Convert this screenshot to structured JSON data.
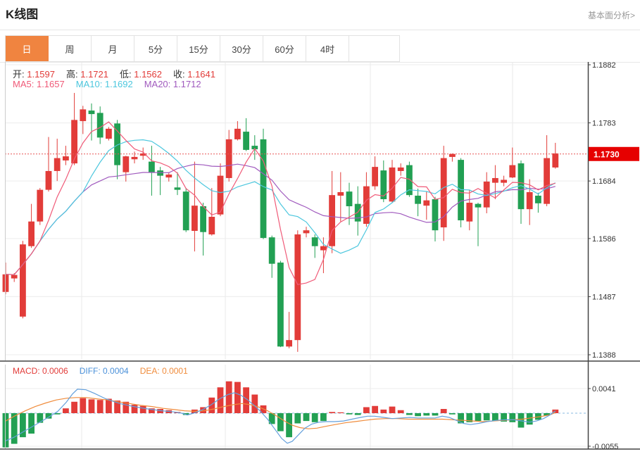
{
  "header": {
    "title": "K线图",
    "analysis_link": "基本面分析>"
  },
  "tabs": {
    "items": [
      "日",
      "周",
      "月",
      "5分",
      "15分",
      "30分",
      "60分",
      "4时"
    ],
    "active": "日"
  },
  "ohlc_info": {
    "label_color": "#333333",
    "value_color": "#e23c39",
    "items": [
      {
        "label": "开:",
        "value": "1.1597"
      },
      {
        "label": "高:",
        "value": "1.1721"
      },
      {
        "label": "低:",
        "value": "1.1562"
      },
      {
        "label": "收:",
        "value": "1.1641"
      }
    ]
  },
  "ma_info": {
    "items": [
      {
        "label": "MA5:",
        "value": "1.1657",
        "color": "#f05a78"
      },
      {
        "label": "MA10:",
        "value": "1.1692",
        "color": "#4dc7de"
      },
      {
        "label": "MA20:",
        "value": "1.1712",
        "color": "#a05abe"
      }
    ]
  },
  "macd_info": {
    "items": [
      {
        "label": "MACD:",
        "value": "0.0006",
        "color": "#e23c39"
      },
      {
        "label": "DIFF:",
        "value": "0.0004",
        "color": "#4a90d9"
      },
      {
        "label": "DEA:",
        "value": "0.0001",
        "color": "#f08c3c"
      }
    ]
  },
  "colors": {
    "up": "#e23c39",
    "down": "#22a053",
    "ma5": "#f05a78",
    "ma10": "#4dc7de",
    "ma20": "#a05abe",
    "diff": "#64a0dc",
    "dea": "#f08c3c",
    "badge_bg": "#e60000",
    "badge_text": "#ffffff",
    "price_line": "#e85555",
    "zero_line": "#8ab8e0",
    "grid": "#ececec",
    "vgrid": "#e8e8e8",
    "axis": "#444444",
    "tick_text": "#333333",
    "tab_active_bg": "#f08440"
  },
  "chart_data": {
    "type": "candlestick",
    "title": "K线图",
    "panels": [
      "price",
      "macd"
    ],
    "legend": [
      "MA5",
      "MA10",
      "MA20",
      "MACD",
      "DIFF",
      "DEA"
    ],
    "price_axis": {
      "ticks": [
        "1.1882",
        "1.1783",
        "1.1684",
        "1.1586",
        "1.1487",
        "1.1388"
      ],
      "range": [
        1.1388,
        1.1882
      ],
      "current_price": "1.1730",
      "current_price_value": 1.173
    },
    "macd_axis": {
      "ticks": [
        "0.0041",
        "-0.0055"
      ],
      "tick_values": [
        0.0041,
        -0.0055
      ]
    },
    "ma_periods": [
      5,
      10,
      20
    ],
    "candles": [
      [
        1.1495,
        1.1545,
        1.1491,
        1.1525
      ],
      [
        1.1518,
        1.1527,
        1.1512,
        1.1524
      ],
      [
        1.1453,
        1.1582,
        1.145,
        1.1576
      ],
      [
        1.1573,
        1.1645,
        1.157,
        1.1615
      ],
      [
        1.1615,
        1.1672,
        1.1609,
        1.1669
      ],
      [
        1.1669,
        1.1759,
        1.1666,
        1.1701
      ],
      [
        1.1701,
        1.1756,
        1.1684,
        1.1723
      ],
      [
        1.1719,
        1.1744,
        1.1711,
        1.1726
      ],
      [
        1.1714,
        1.1834,
        1.1711,
        1.1788
      ],
      [
        1.1786,
        1.1812,
        1.1764,
        1.1806
      ],
      [
        1.1804,
        1.1816,
        1.1753,
        1.1798
      ],
      [
        1.18,
        1.1811,
        1.1747,
        1.1758
      ],
      [
        1.1756,
        1.1776,
        1.1753,
        1.1773
      ],
      [
        1.1782,
        1.1788,
        1.1687,
        1.1711
      ],
      [
        1.1699,
        1.1727,
        1.1683,
        1.1726
      ],
      [
        1.1721,
        1.1734,
        1.1714,
        1.1725
      ],
      [
        1.1727,
        1.1741,
        1.172,
        1.1731
      ],
      [
        1.1717,
        1.1744,
        1.1659,
        1.1699
      ],
      [
        1.1702,
        1.1708,
        1.166,
        1.1693
      ],
      [
        1.169,
        1.1699,
        1.1683,
        1.1695
      ],
      [
        1.1673,
        1.1699,
        1.166,
        1.1669
      ],
      [
        1.1666,
        1.1672,
        1.1597,
        1.16
      ],
      [
        1.1599,
        1.1717,
        1.1564,
        1.1642
      ],
      [
        1.1641,
        1.1647,
        1.1557,
        1.1597
      ],
      [
        1.1593,
        1.1672,
        1.1591,
        1.1623
      ],
      [
        1.1627,
        1.1714,
        1.1624,
        1.1693
      ],
      [
        1.1689,
        1.1771,
        1.1683,
        1.1755
      ],
      [
        1.1755,
        1.1786,
        1.1753,
        1.1773
      ],
      [
        1.1768,
        1.1791,
        1.1735,
        1.1737
      ],
      [
        1.1744,
        1.1762,
        1.172,
        1.1738
      ],
      [
        1.1755,
        1.1773,
        1.1585,
        1.1587
      ],
      [
        1.1588,
        1.1591,
        1.1519,
        1.1543
      ],
      [
        1.1545,
        1.1548,
        1.1401,
        1.1402
      ],
      [
        1.1402,
        1.1461,
        1.1399,
        1.1413
      ],
      [
        1.1413,
        1.16,
        1.1393,
        1.1593
      ],
      [
        1.1595,
        1.1606,
        1.1588,
        1.16
      ],
      [
        1.1588,
        1.1593,
        1.1553,
        1.1573
      ],
      [
        1.1566,
        1.1588,
        1.1527,
        1.1573
      ],
      [
        1.1573,
        1.1701,
        1.1561,
        1.166
      ],
      [
        1.1659,
        1.1699,
        1.1615,
        1.1665
      ],
      [
        1.1666,
        1.1681,
        1.1609,
        1.1641
      ],
      [
        1.1645,
        1.1675,
        1.1591,
        1.1615
      ],
      [
        1.1611,
        1.1699,
        1.1606,
        1.1675
      ],
      [
        1.1675,
        1.1726,
        1.1669,
        1.1708
      ],
      [
        1.1702,
        1.1719,
        1.1648,
        1.1653
      ],
      [
        1.1649,
        1.172,
        1.1647,
        1.1707
      ],
      [
        1.1701,
        1.1714,
        1.1693,
        1.1707
      ],
      [
        1.1711,
        1.1717,
        1.1657,
        1.166
      ],
      [
        1.1659,
        1.1671,
        1.1624,
        1.1645
      ],
      [
        1.1642,
        1.1666,
        1.1618,
        1.1651
      ],
      [
        1.1653,
        1.1657,
        1.1581,
        1.16
      ],
      [
        1.1605,
        1.1744,
        1.1582,
        1.1723
      ],
      [
        1.1725,
        1.1731,
        1.1717,
        1.173
      ],
      [
        1.172,
        1.1723,
        1.1605,
        1.1617
      ],
      [
        1.1615,
        1.1669,
        1.16,
        1.1647
      ],
      [
        1.1645,
        1.1647,
        1.1573,
        1.1639
      ],
      [
        1.1639,
        1.1699,
        1.1629,
        1.1683
      ],
      [
        1.1681,
        1.1711,
        1.1653,
        1.1689
      ],
      [
        1.1681,
        1.1693,
        1.1675,
        1.1686
      ],
      [
        1.169,
        1.1741,
        1.1689,
        1.1711
      ],
      [
        1.1714,
        1.1719,
        1.1611,
        1.1636
      ],
      [
        1.1636,
        1.1687,
        1.1609,
        1.1665
      ],
      [
        1.1659,
        1.1664,
        1.163,
        1.1646
      ],
      [
        1.1645,
        1.1762,
        1.1641,
        1.1723
      ],
      [
        1.1707,
        1.1749,
        1.1705,
        1.1731
      ]
    ],
    "macd_bars": [
      -0.0057,
      -0.0051,
      -0.004,
      -0.0034,
      -0.0016,
      -0.0009,
      -0.0002,
      0.0008,
      0.0019,
      0.0025,
      0.0023,
      0.0022,
      0.0024,
      0.0021,
      0.0019,
      0.0014,
      0.0012,
      0.0008,
      0.0007,
      0.0005,
      0.0002,
      -0.0003,
      0.0006,
      0.001,
      0.0026,
      0.0043,
      0.0053,
      0.0052,
      0.0043,
      0.0031,
      0.0013,
      -0.0018,
      -0.003,
      -0.004,
      -0.0017,
      -0.0013,
      -0.0015,
      -0.0013,
      0.0002,
      0.0,
      -0.0002,
      -0.0003,
      0.001,
      0.0012,
      0.0006,
      0.0011,
      0.0005,
      -0.0003,
      -0.0005,
      -0.0004,
      -0.0004,
      0.0007,
      -0.0002,
      -0.0017,
      -0.0015,
      -0.0013,
      -0.0012,
      -0.0013,
      -0.0014,
      -0.0015,
      -0.0024,
      -0.0019,
      -0.0011,
      -0.0004,
      0.0006
    ],
    "diff_line": [
      [
        8,
        -0.0046
      ],
      [
        20,
        -0.004
      ],
      [
        33,
        -0.0031
      ],
      [
        45,
        -0.0023
      ],
      [
        58,
        -0.0014
      ],
      [
        70,
        -0.0006
      ],
      [
        82,
        0.0003
      ],
      [
        94,
        0.0018
      ],
      [
        103,
        0.0032
      ],
      [
        110,
        0.004
      ],
      [
        122,
        0.0039
      ],
      [
        134,
        0.0033
      ],
      [
        150,
        0.0024
      ],
      [
        170,
        0.0016
      ],
      [
        190,
        0.0011
      ],
      [
        210,
        0.0007
      ],
      [
        230,
        0.0004
      ],
      [
        248,
        0.0002
      ],
      [
        258,
        0.0
      ],
      [
        266,
        -0.0003
      ],
      [
        275,
        0.0
      ],
      [
        288,
        0.0006
      ],
      [
        300,
        0.0014
      ],
      [
        312,
        0.0024
      ],
      [
        324,
        0.0031
      ],
      [
        333,
        0.0034
      ],
      [
        342,
        0.003
      ],
      [
        352,
        0.0022
      ],
      [
        362,
        0.0012
      ],
      [
        370,
        0.0003
      ],
      [
        380,
        -0.001
      ],
      [
        390,
        -0.0026
      ],
      [
        400,
        -0.0042
      ],
      [
        408,
        -0.005
      ],
      [
        415,
        -0.0047
      ],
      [
        424,
        -0.0036
      ],
      [
        433,
        -0.0025
      ],
      [
        443,
        -0.0018
      ],
      [
        453,
        -0.0015
      ],
      [
        463,
        -0.0014
      ],
      [
        475,
        -0.0014
      ],
      [
        488,
        -0.0013
      ],
      [
        500,
        -0.001
      ],
      [
        512,
        -0.0007
      ],
      [
        522,
        -0.0005
      ],
      [
        532,
        -0.0005
      ],
      [
        545,
        -0.0007
      ],
      [
        557,
        -0.0009
      ],
      [
        570,
        -0.0008
      ],
      [
        582,
        -0.0007
      ],
      [
        594,
        -0.0008
      ],
      [
        606,
        -0.0008
      ],
      [
        618,
        -0.0008
      ],
      [
        628,
        -0.0005
      ],
      [
        638,
        -0.0007
      ],
      [
        648,
        -0.0012
      ],
      [
        658,
        -0.0017
      ],
      [
        668,
        -0.0019
      ],
      [
        680,
        -0.0017
      ],
      [
        692,
        -0.0014
      ],
      [
        705,
        -0.0012
      ],
      [
        718,
        -0.0011
      ],
      [
        730,
        -0.0011
      ],
      [
        742,
        -0.0013
      ],
      [
        752,
        -0.0015
      ],
      [
        762,
        -0.0013
      ],
      [
        772,
        -0.0009
      ],
      [
        781,
        -0.0003
      ],
      [
        789,
        0.0004
      ]
    ],
    "dea_line": [
      [
        8,
        -0.0013
      ],
      [
        22,
        -0.0004
      ],
      [
        36,
        0.0004
      ],
      [
        50,
        0.0011
      ],
      [
        65,
        0.0017
      ],
      [
        80,
        0.0022
      ],
      [
        95,
        0.0025
      ],
      [
        108,
        0.0026
      ],
      [
        122,
        0.0026
      ],
      [
        136,
        0.0024
      ],
      [
        152,
        0.0022
      ],
      [
        168,
        0.0019
      ],
      [
        184,
        0.0016
      ],
      [
        200,
        0.0013
      ],
      [
        216,
        0.0011
      ],
      [
        232,
        0.0008
      ],
      [
        248,
        0.0006
      ],
      [
        262,
        0.0004
      ],
      [
        276,
        0.0003
      ],
      [
        290,
        0.0004
      ],
      [
        304,
        0.0007
      ],
      [
        318,
        0.0011
      ],
      [
        331,
        0.0014
      ],
      [
        344,
        0.0016
      ],
      [
        356,
        0.0014
      ],
      [
        368,
        0.001
      ],
      [
        380,
        0.0004
      ],
      [
        392,
        -0.0004
      ],
      [
        404,
        -0.0013
      ],
      [
        415,
        -0.002
      ],
      [
        426,
        -0.0024
      ],
      [
        438,
        -0.0026
      ],
      [
        450,
        -0.0025
      ],
      [
        462,
        -0.0022
      ],
      [
        476,
        -0.0019
      ],
      [
        490,
        -0.0016
      ],
      [
        504,
        -0.0014
      ],
      [
        518,
        -0.0012
      ],
      [
        532,
        -0.001
      ],
      [
        548,
        -0.0009
      ],
      [
        564,
        -0.0009
      ],
      [
        580,
        -0.001
      ],
      [
        596,
        -0.001
      ],
      [
        612,
        -0.001
      ],
      [
        628,
        -0.001
      ],
      [
        644,
        -0.0011
      ],
      [
        658,
        -0.0012
      ],
      [
        672,
        -0.0013
      ],
      [
        686,
        -0.0014
      ],
      [
        700,
        -0.0013
      ],
      [
        714,
        -0.0012
      ],
      [
        728,
        -0.0011
      ],
      [
        742,
        -0.001
      ],
      [
        754,
        -0.0008
      ],
      [
        766,
        -0.0006
      ],
      [
        776,
        -0.0004
      ],
      [
        783,
        -0.0002
      ],
      [
        789,
        0.0001
      ]
    ]
  }
}
